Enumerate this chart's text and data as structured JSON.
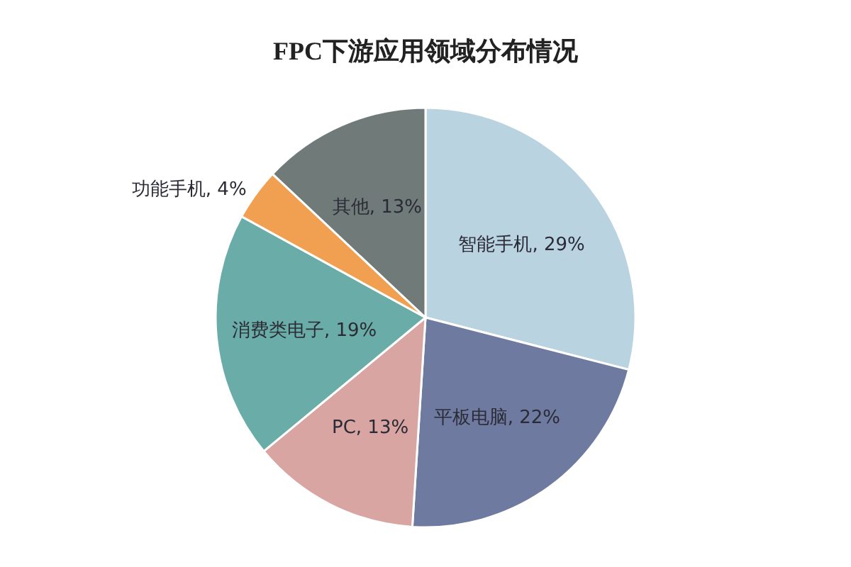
{
  "chart_data": {
    "type": "pie",
    "title": "FPC下游应用领域分布情况",
    "categories": [
      "智能手机",
      "平板电脑",
      "PC",
      "消费类电子",
      "功能手机",
      "其他"
    ],
    "values": [
      29,
      22,
      13,
      19,
      4,
      13
    ],
    "value_labels": [
      "29%",
      "22%",
      "13%",
      "19%",
      "4%",
      "13%"
    ],
    "colors": [
      "#b9d3e1",
      "#6e7aa0",
      "#d8a5a3",
      "#6aaca7",
      "#f0a050",
      "#6f7a79"
    ]
  }
}
